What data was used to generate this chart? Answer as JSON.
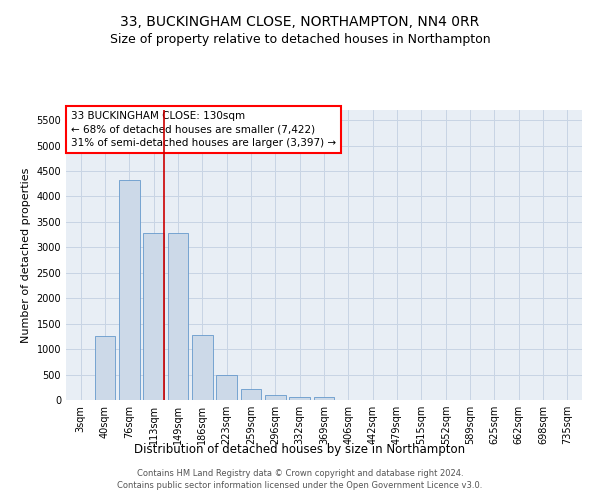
{
  "title": "33, BUCKINGHAM CLOSE, NORTHAMPTON, NN4 0RR",
  "subtitle": "Size of property relative to detached houses in Northampton",
  "xlabel": "Distribution of detached houses by size in Northampton",
  "ylabel": "Number of detached properties",
  "bar_color": "#ccd9e8",
  "bar_edgecolor": "#6699cc",
  "grid_color": "#c8d4e4",
  "background_color": "#e8eef5",
  "categories": [
    "3sqm",
    "40sqm",
    "76sqm",
    "113sqm",
    "149sqm",
    "186sqm",
    "223sqm",
    "259sqm",
    "296sqm",
    "332sqm",
    "369sqm",
    "406sqm",
    "442sqm",
    "479sqm",
    "515sqm",
    "552sqm",
    "589sqm",
    "625sqm",
    "662sqm",
    "698sqm",
    "735sqm"
  ],
  "values": [
    0,
    1260,
    4330,
    3290,
    3290,
    1280,
    490,
    215,
    95,
    60,
    55,
    0,
    0,
    0,
    0,
    0,
    0,
    0,
    0,
    0,
    0
  ],
  "ylim": [
    0,
    5700
  ],
  "yticks": [
    0,
    500,
    1000,
    1500,
    2000,
    2500,
    3000,
    3500,
    4000,
    4500,
    5000,
    5500
  ],
  "vline_color": "#cc0000",
  "vline_x": 3.42,
  "annotation_text": "33 BUCKINGHAM CLOSE: 130sqm\n← 68% of detached houses are smaller (7,422)\n31% of semi-detached houses are larger (3,397) →",
  "footer": "Contains HM Land Registry data © Crown copyright and database right 2024.\nContains public sector information licensed under the Open Government Licence v3.0.",
  "title_fontsize": 10,
  "subtitle_fontsize": 9,
  "xlabel_fontsize": 8.5,
  "ylabel_fontsize": 8,
  "tick_fontsize": 7,
  "annotation_fontsize": 7.5,
  "footer_fontsize": 6
}
